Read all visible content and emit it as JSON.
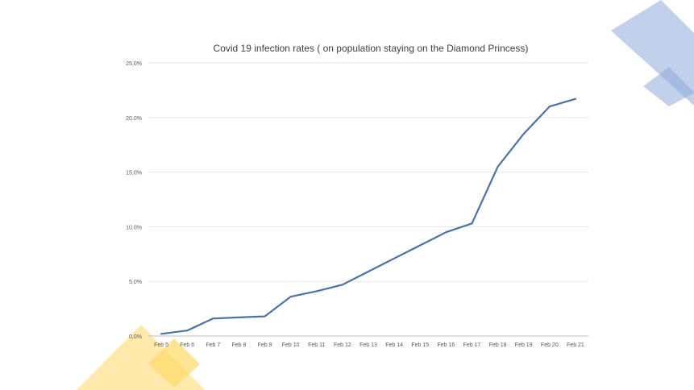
{
  "decor": {
    "blue_shape_color": "#8EA9DB",
    "yellow_shape_color": "#FFD966"
  },
  "chart_data": {
    "type": "line",
    "title": "Covid 19 infection rates ( on population staying on the Diamond Princess)",
    "xlabel": "",
    "ylabel": "",
    "categories": [
      "Feb 5",
      "Feb 6",
      "Feb 7",
      "Feb 8",
      "Feb 9",
      "Feb 10",
      "Feb 11",
      "Feb 12",
      "Feb 13",
      "Feb 14",
      "Feb 15",
      "Feb 16",
      "Feb 17",
      "Feb 18",
      "Feb 19",
      "Feb 20",
      "Feb 21"
    ],
    "series": [
      {
        "values": [
          0.2,
          0.5,
          1.6,
          1.7,
          1.8,
          3.6,
          4.1,
          4.7,
          5.9,
          7.1,
          8.3,
          9.5,
          10.3,
          15.5,
          18.5,
          21.0,
          21.7
        ],
        "color": "#4A72A8"
      }
    ],
    "ylim": [
      0,
      25
    ],
    "yticks": [
      0,
      5,
      10,
      15,
      20,
      25
    ],
    "ytick_labels": [
      "0,0%",
      "5,0%",
      "10,0%",
      "15,0%",
      "20,0%",
      "25,0%"
    ],
    "grid": true,
    "legend": "none"
  }
}
